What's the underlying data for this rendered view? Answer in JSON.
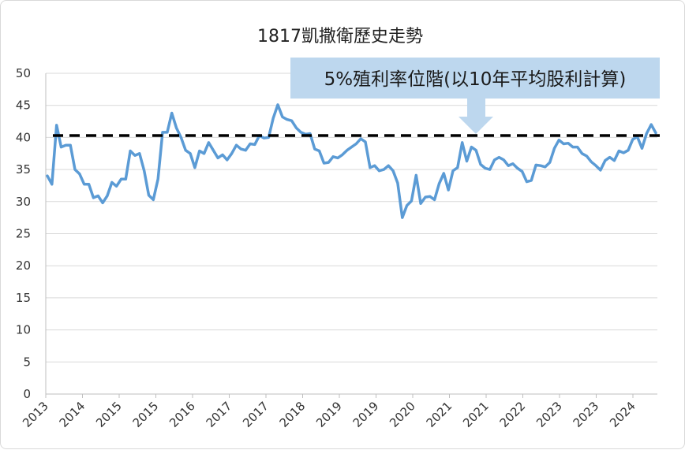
{
  "chart_data": {
    "type": "line",
    "title": "1817凱撒衛歷史走勢",
    "xlabel": "",
    "ylabel": "",
    "ylim": [
      0,
      50
    ],
    "yticks": [
      "0",
      "5",
      "10",
      "15",
      "20",
      "25",
      "30",
      "35",
      "40",
      "45",
      "50"
    ],
    "xticks": [
      "2013",
      "2014",
      "2015",
      "2015",
      "2016",
      "2017",
      "2017",
      "2018",
      "2019",
      "2019",
      "2020",
      "2021",
      "2021",
      "2022",
      "2023",
      "2023",
      "2024"
    ],
    "grid": true,
    "series": [
      {
        "color": "#5b9bd5",
        "values": [
          34,
          32.7,
          41.9,
          38.5,
          38.8,
          38.8,
          35,
          34.3,
          32.7,
          32.7,
          30.6,
          30.9,
          29.8,
          30.9,
          33,
          32.4,
          33.5,
          33.5,
          37.9,
          37.2,
          37.5,
          34.8,
          31,
          30.3,
          33.5,
          40.8,
          40.8,
          43.8,
          41.5,
          40,
          38,
          37.5,
          35.3,
          37.9,
          37.5,
          39.2,
          38,
          36.8,
          37.3,
          36.5,
          37.5,
          38.8,
          38.2,
          38,
          39,
          38.9,
          40.3,
          39.9,
          40,
          43,
          45.1,
          43.2,
          42.8,
          42.6,
          41.5,
          40.8,
          40.5,
          40.6,
          38.2,
          37.9,
          36,
          36.1,
          37,
          36.8,
          37.3,
          38,
          38.5,
          39,
          39.8,
          39.3,
          35.3,
          35.6,
          34.8,
          35,
          35.6,
          34.8,
          32.9,
          27.5,
          29.4,
          30.1,
          34.1,
          29.7,
          30.7,
          30.8,
          30.3,
          32.8,
          34.4,
          31.8,
          34.8,
          35.3,
          39.2,
          36.3,
          38.5,
          38,
          35.8,
          35.2,
          35,
          36.5,
          36.9,
          36.5,
          35.6,
          35.9,
          35.2,
          34.7,
          33.1,
          33.3,
          35.7,
          35.6,
          35.4,
          36.1,
          38.3,
          39.6,
          39,
          39.1,
          38.5,
          38.5,
          37.5,
          37.1,
          36.2,
          35.6,
          34.9,
          36.4,
          36.9,
          36.4,
          37.9,
          37.6,
          38,
          39.7,
          40.1,
          38.3,
          40.6,
          42,
          40.7
        ]
      }
    ],
    "reference_line": {
      "value": 40.3,
      "style": "dashed",
      "color": "#000000"
    },
    "annotation": {
      "text": "5%殖利率位階(以10年平均股利計算)",
      "box_color": "#bdd7ee",
      "arrow_color": "#bdd7ee"
    }
  }
}
